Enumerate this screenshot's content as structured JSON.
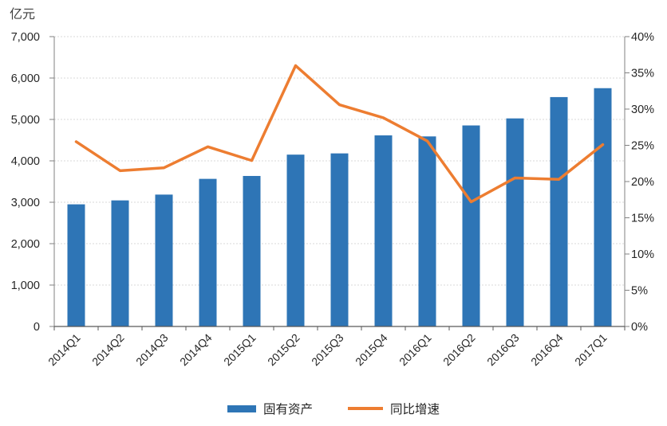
{
  "chart_data": {
    "type": "bar+line",
    "categories": [
      "2014Q1",
      "2014Q2",
      "2014Q3",
      "2014Q4",
      "2015Q1",
      "2015Q2",
      "2015Q3",
      "2015Q4",
      "2016Q1",
      "2016Q2",
      "2016Q3",
      "2016Q4",
      "2017Q1"
    ],
    "series": [
      {
        "name": "固有资产",
        "type": "bar",
        "axis": "left",
        "color": "#2E75B6",
        "values": [
          2950,
          3045,
          3185,
          3565,
          3635,
          4150,
          4180,
          4615,
          4590,
          4855,
          5025,
          5540,
          5755
        ]
      },
      {
        "name": "同比增速",
        "type": "line",
        "axis": "right",
        "color": "#ED7D31",
        "values": [
          25.5,
          21.5,
          21.9,
          24.8,
          22.9,
          36.0,
          30.6,
          28.8,
          25.6,
          17.2,
          20.5,
          20.3,
          25.1
        ]
      }
    ],
    "left_axis": {
      "title": "亿元",
      "min": 0,
      "max": 7000,
      "step": 1000
    },
    "right_axis": {
      "min": 0,
      "max": 40,
      "step": 5,
      "unit": "%"
    },
    "grid": true,
    "legend_position": "bottom",
    "style": {
      "grid_color": "#D9D9D9",
      "axis_color": "#808080",
      "bottom_axis_color": "#595959",
      "text_color": "#262626"
    }
  }
}
